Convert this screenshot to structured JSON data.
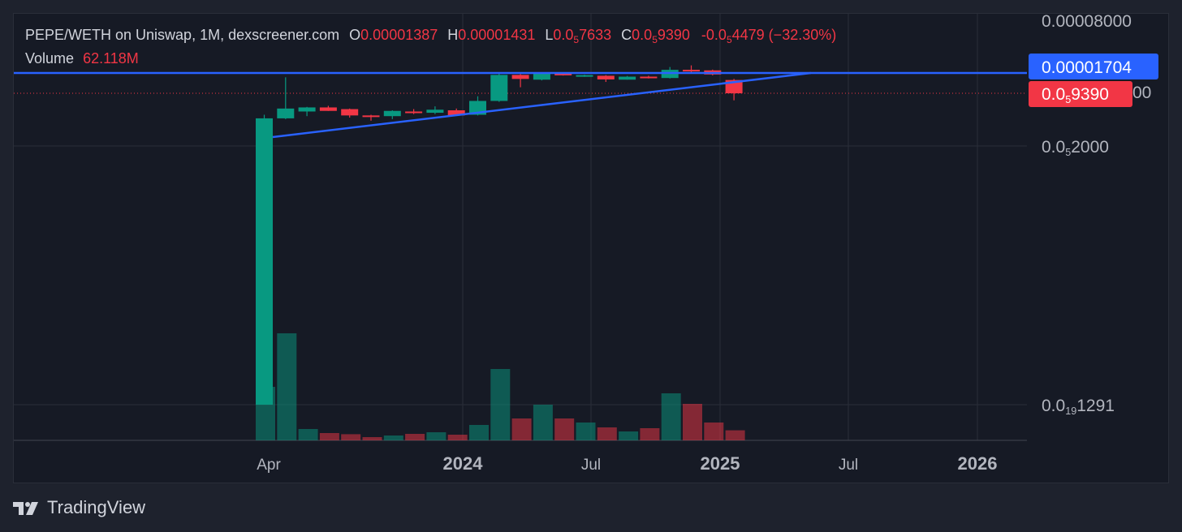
{
  "header": {
    "pair": "PEPE/WETH on Uniswap, 1M, dexscreener.com",
    "o_label": "O",
    "o_value": "0.00001387",
    "h_label": "H",
    "h_value": "0.00001431",
    "l_label": "L",
    "l_value_prefix": "0.0",
    "l_value_sub": "5",
    "l_value_rest": "7633",
    "c_label": "C",
    "c_value_prefix": "0.0",
    "c_value_sub": "5",
    "c_value_rest": "9390",
    "change_prefix": "-0.0",
    "change_sub": "5",
    "change_rest": "4479 (−32.30%)",
    "volume_label": "Volume",
    "volume_value": "62.118M"
  },
  "chart_data": {
    "type": "candlestick",
    "scale": "log",
    "x_ticks": [
      {
        "label": "Apr",
        "bold": false
      },
      {
        "label": "2024",
        "bold": true
      },
      {
        "label": "Jul",
        "bold": false
      },
      {
        "label": "2025",
        "bold": true
      },
      {
        "label": "Jul",
        "bold": false
      },
      {
        "label": "2026",
        "bold": true
      }
    ],
    "y_ticks": [
      {
        "prefix": "0.00008000",
        "sub": "",
        "rest": ""
      },
      {
        "prefix": "0.0",
        "sub": "5",
        "rest": "2000"
      },
      {
        "prefix": "0.0",
        "sub": "19",
        "rest": "1291"
      }
    ],
    "y_partial_tick": "00",
    "price_tags": [
      {
        "label": "0.00001704",
        "color": "#2962ff"
      },
      {
        "prefix": "0.0",
        "sub": "5",
        "rest": "9390",
        "color": "#f23645"
      }
    ],
    "candles": [
      {
        "o": 1.5e-19,
        "h": 5e-06,
        "l": 1.5e-19,
        "c": 4.5e-06
      },
      {
        "o": 4.5e-06,
        "h": 1.5e-05,
        "l": 4.4e-06,
        "c": 6e-06
      },
      {
        "o": 5.5e-06,
        "h": 6.3e-06,
        "l": 4.8e-06,
        "c": 6.2e-06
      },
      {
        "o": 6.2e-06,
        "h": 6.5e-06,
        "l": 5.6e-06,
        "c": 5.6e-06
      },
      {
        "o": 5.9e-06,
        "h": 6e-06,
        "l": 4.6e-06,
        "c": 4.9e-06
      },
      {
        "o": 4.9e-06,
        "h": 5e-06,
        "l": 4.2e-06,
        "c": 4.8e-06
      },
      {
        "o": 4.8e-06,
        "h": 5.7e-06,
        "l": 4.4e-06,
        "c": 5.6e-06
      },
      {
        "o": 5.5e-06,
        "h": 5.9e-06,
        "l": 5.1e-06,
        "c": 5.3e-06
      },
      {
        "o": 5.3e-06,
        "h": 6.4e-06,
        "l": 5.1e-06,
        "c": 5.8e-06
      },
      {
        "o": 5.7e-06,
        "h": 6e-06,
        "l": 4.9e-06,
        "c": 4.9e-06
      },
      {
        "o": 5e-06,
        "h": 8.6e-06,
        "l": 4.9e-06,
        "c": 7.5e-06
      },
      {
        "o": 7.5e-06,
        "h": 1.73e-05,
        "l": 7.3e-06,
        "c": 1.61e-05
      },
      {
        "o": 1.61e-05,
        "h": 1.65e-05,
        "l": 1.12e-05,
        "c": 1.43e-05
      },
      {
        "o": 1.4e-05,
        "h": 1.71e-05,
        "l": 1.37e-05,
        "c": 1.7e-05
      },
      {
        "o": 1.7e-05,
        "h": 1.72e-05,
        "l": 1.58e-05,
        "c": 1.59e-05
      },
      {
        "o": 1.6e-05,
        "h": 1.62e-05,
        "l": 1.52e-05,
        "c": 1.6e-05
      },
      {
        "o": 1.57e-05,
        "h": 1.6e-05,
        "l": 1.31e-05,
        "c": 1.41e-05
      },
      {
        "o": 1.4e-05,
        "h": 1.56e-05,
        "l": 1.4e-05,
        "c": 1.53e-05
      },
      {
        "o": 1.53e-05,
        "h": 1.57e-05,
        "l": 1.45e-05,
        "c": 1.47e-05
      },
      {
        "o": 1.47e-05,
        "h": 2.03e-05,
        "l": 1.45e-05,
        "c": 1.87e-05
      },
      {
        "o": 1.87e-05,
        "h": 2.13e-05,
        "l": 1.74e-05,
        "c": 1.84e-05
      },
      {
        "o": 1.84e-05,
        "h": 1.88e-05,
        "l": 1.59e-05,
        "c": 1.63e-05
      },
      {
        "o": 1.387e-05,
        "h": 1.431e-05,
        "l": 7.633e-06,
        "c": 9.39e-06
      }
    ],
    "volume_millions": [
      330,
      660,
      70,
      45,
      38,
      20,
      30,
      40,
      50,
      35,
      95,
      440,
      135,
      220,
      135,
      110,
      80,
      55,
      75,
      290,
      225,
      110,
      62.118
    ],
    "lines": [
      {
        "name": "horizontal",
        "price": 1.704e-05
      },
      {
        "name": "trendline",
        "from_index": 0,
        "from_price": 2.6e-06,
        "to_index": 26,
        "to_price": 1.704e-05
      },
      {
        "name": "close-dotted",
        "price": 9.39e-06
      }
    ],
    "colors": {
      "up": "#089981",
      "down": "#f23645",
      "hline": "#2962ff",
      "trend": "#2962ff",
      "grid": "#2a2e39",
      "text": "#b2b5be"
    }
  },
  "footer": {
    "brand": "TradingView"
  }
}
